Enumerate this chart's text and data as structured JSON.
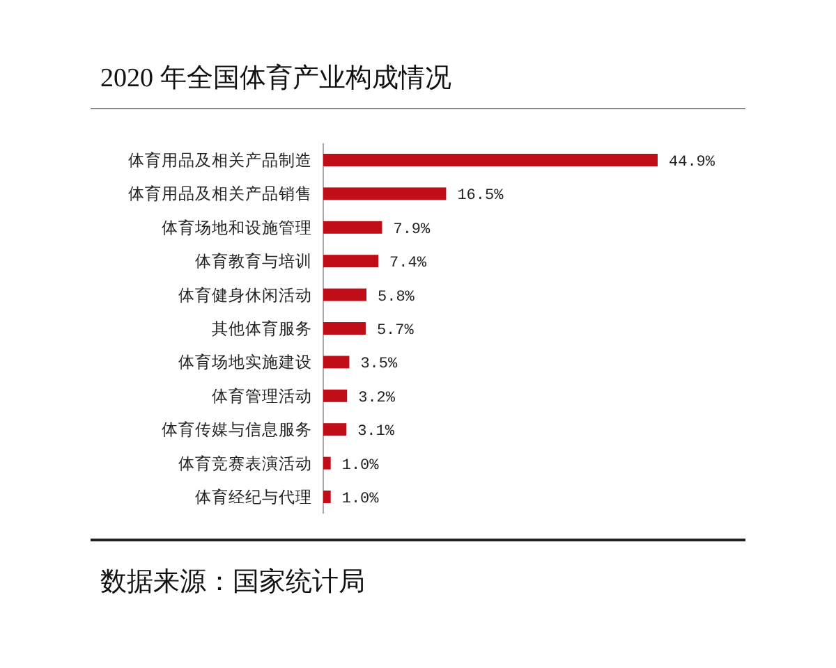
{
  "chart_data": {
    "type": "bar",
    "orientation": "horizontal",
    "title": "2020 年全国体育产业构成情况",
    "categories": [
      "体育用品及相关产品制造",
      "体育用品及相关产品销售",
      "体育场地和设施管理",
      "体育教育与培训",
      "体育健身休闲活动",
      "其他体育服务",
      "体育场地实施建设",
      "体育管理活动",
      "体育传媒与信息服务",
      "体育竞赛表演活动",
      "体育经纪与代理"
    ],
    "values": [
      44.9,
      16.5,
      7.9,
      7.4,
      5.8,
      5.7,
      3.5,
      3.2,
      3.1,
      1.0,
      1.0
    ],
    "value_labels": [
      "44.9%",
      "16.5%",
      "7.9%",
      "7.4%",
      "5.8%",
      "5.7%",
      "3.5%",
      "3.2%",
      "3.1%",
      "1.0%",
      "1.0%"
    ],
    "color": "#c00d17",
    "annotations": [
      "数据来源：国家统计局"
    ]
  }
}
